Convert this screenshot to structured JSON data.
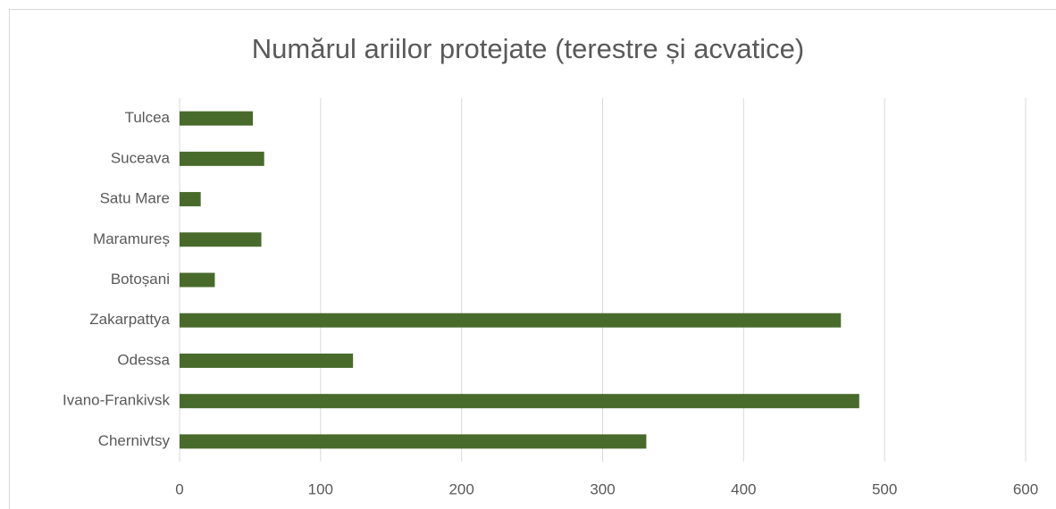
{
  "chart_data": {
    "type": "bar",
    "orientation": "horizontal",
    "title": "Numărul ariilor protejate (terestre și acvatice)",
    "categories": [
      "Tulcea",
      "Suceava",
      "Satu Mare",
      "Maramureș",
      "Botoșani",
      "Zakarpattya",
      "Odessa",
      "Ivano-Frankivsk",
      "Chernivtsy"
    ],
    "values": [
      52,
      60,
      15,
      58,
      25,
      469,
      123,
      482,
      331
    ],
    "color": "#486b2c",
    "xlim": [
      0,
      600
    ],
    "xticks": [
      0,
      100,
      200,
      300,
      400,
      500,
      600
    ],
    "grid": true
  }
}
